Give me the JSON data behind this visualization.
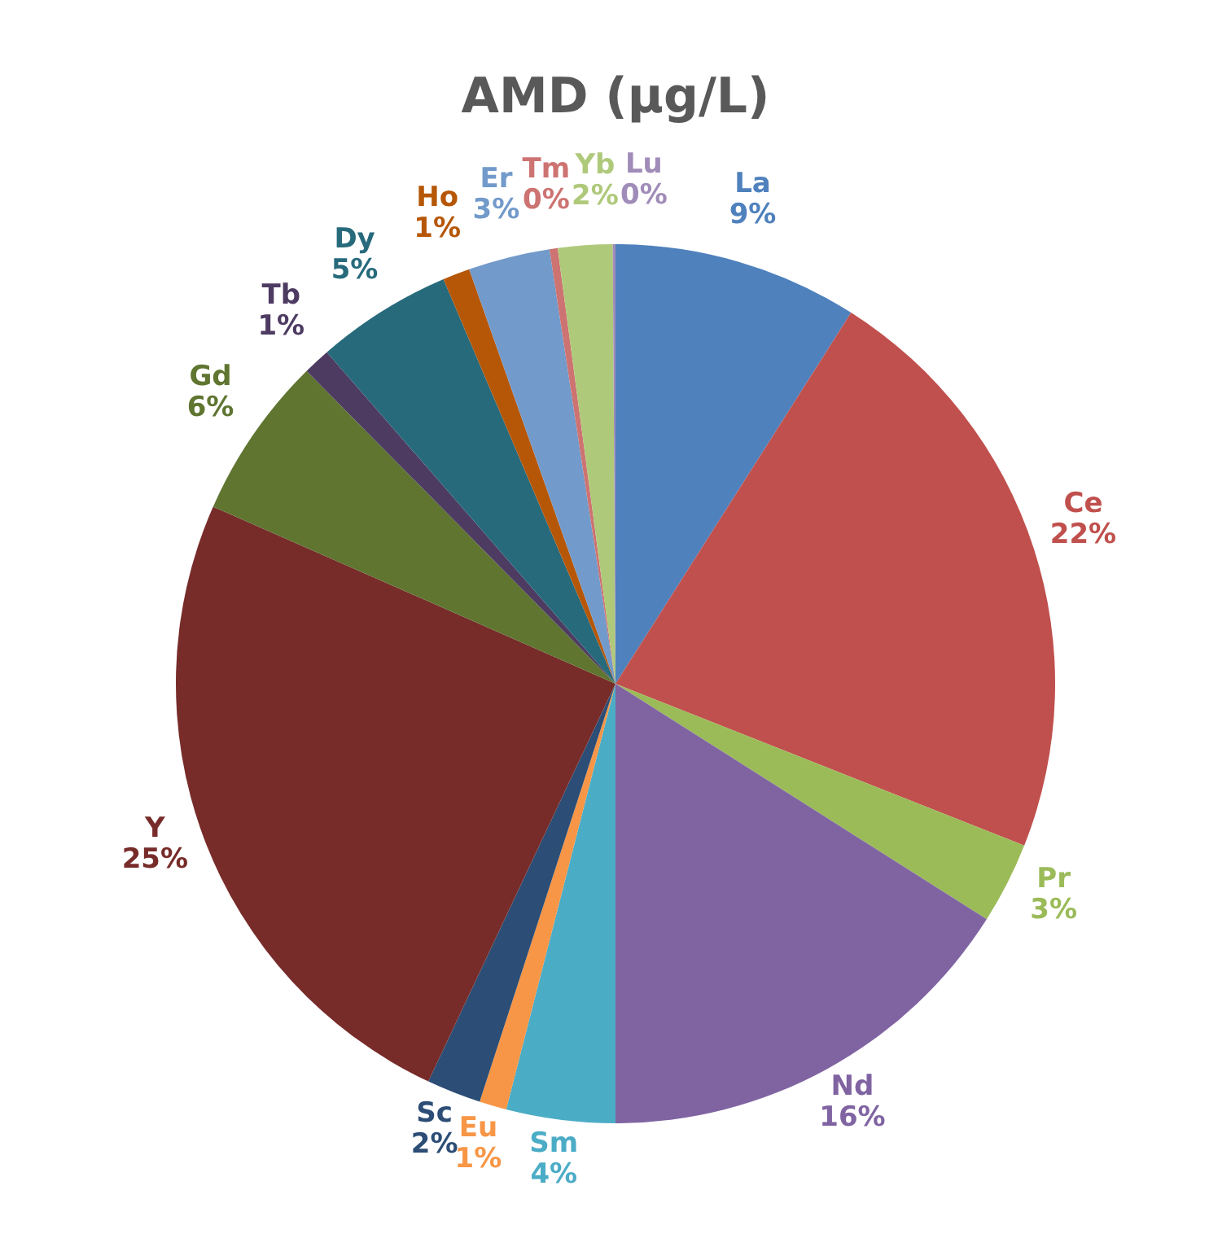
{
  "chart_data": {
    "type": "pie",
    "title": "AMD (µg/L)",
    "categories": [
      "La",
      "Ce",
      "Pr",
      "Nd",
      "Sm",
      "Eu",
      "Sc",
      "Y",
      "Gd",
      "Tb",
      "Dy",
      "Ho",
      "Er",
      "Tm",
      "Yb",
      "Lu"
    ],
    "values": [
      9,
      22,
      3,
      16,
      4,
      1,
      2,
      24.6,
      6,
      1,
      5,
      1,
      3,
      0.3,
      2,
      0.1
    ],
    "value_labels": [
      "9%",
      "22%",
      "3%",
      "16%",
      "4%",
      "1%",
      "2%",
      "25%",
      "6%",
      "1%",
      "5%",
      "1%",
      "3%",
      "0%",
      "2%",
      "0%"
    ],
    "colors": [
      "#4f81bd",
      "#c0504d",
      "#9bbb59",
      "#8064a2",
      "#4bacc6",
      "#f79646",
      "#2c4d75",
      "#772c2a",
      "#5f7530",
      "#4d3b62",
      "#276a7c",
      "#b65708",
      "#729aca",
      "#cd7371",
      "#afc97a",
      "#a08cb8"
    ]
  }
}
